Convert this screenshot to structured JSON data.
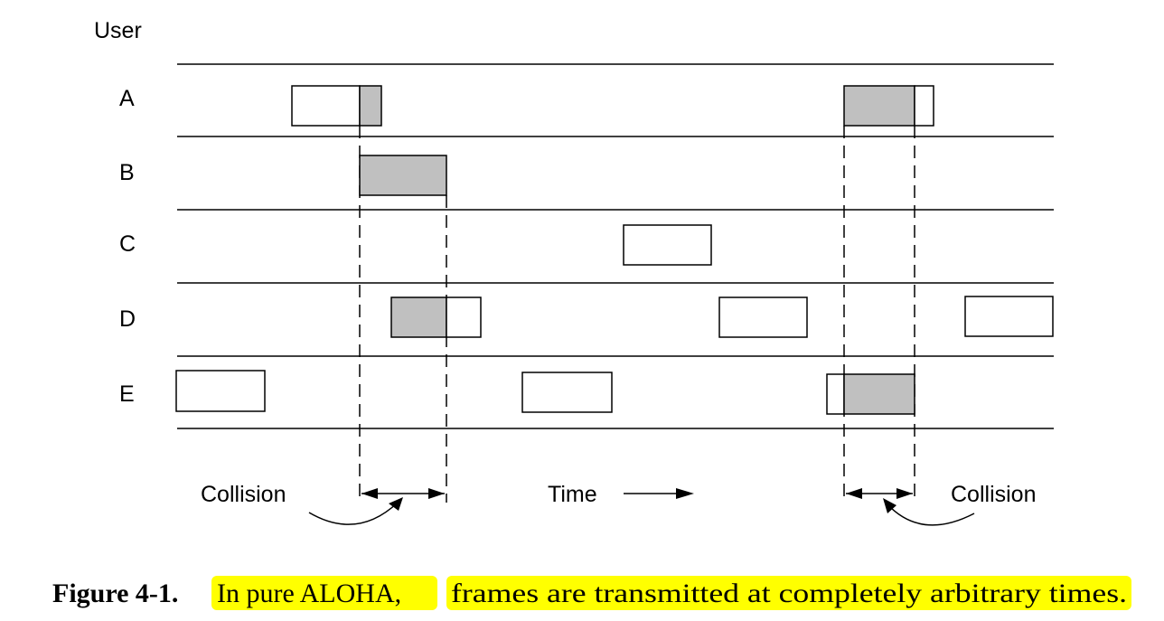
{
  "diagram": {
    "y_axis_label": "User",
    "users": [
      "A",
      "B",
      "C",
      "D",
      "E"
    ],
    "time_label": "Time",
    "collision_left_label": "Collision",
    "collision_right_label": "Collision"
  },
  "caption": {
    "figure_number": "Figure 4-1.",
    "highlight_1": "In pure ALOHA,",
    "highlight_2": "frames are transmitted at completely arbitrary times.",
    "highlight_color": "#ffff00"
  },
  "colors": {
    "frame_fill": "#ffffff",
    "collided_fill": "#c0c0c0",
    "stroke": "#000000"
  }
}
